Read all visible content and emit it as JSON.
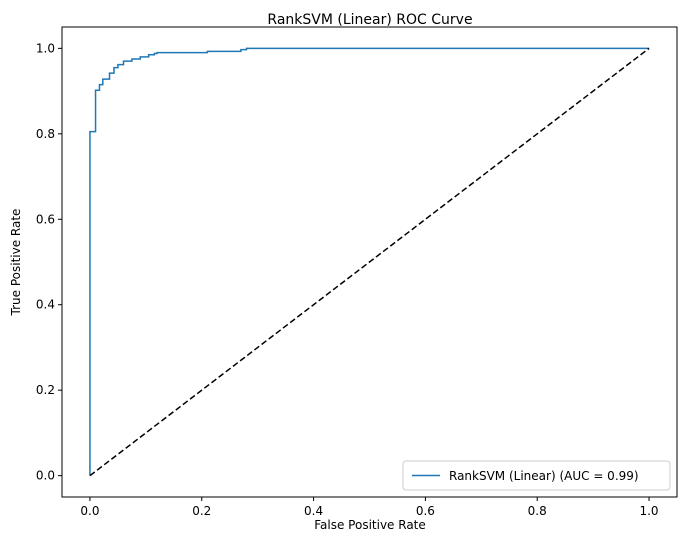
{
  "chart_data": {
    "type": "line",
    "title": "RankSVM (Linear) ROC Curve",
    "xlabel": "False Positive Rate",
    "ylabel": "True Positive Rate",
    "xlim": [
      -0.05,
      1.05
    ],
    "ylim": [
      -0.05,
      1.05
    ],
    "xticks": [
      "0.0",
      "0.2",
      "0.4",
      "0.6",
      "0.8",
      "1.0"
    ],
    "yticks": [
      "0.0",
      "0.2",
      "0.4",
      "0.6",
      "0.8",
      "1.0"
    ],
    "grid": false,
    "legend_position": "lower-right",
    "series": [
      {
        "name": "RankSVM (Linear) (AUC = 0.99)",
        "color": "#1f77b4",
        "style": "solid",
        "x": [
          0.0,
          0.0,
          0.01,
          0.01,
          0.017,
          0.017,
          0.023,
          0.023,
          0.035,
          0.035,
          0.043,
          0.043,
          0.05,
          0.05,
          0.06,
          0.06,
          0.075,
          0.075,
          0.09,
          0.09,
          0.105,
          0.105,
          0.115,
          0.115,
          0.12,
          0.12,
          0.21,
          0.21,
          0.27,
          0.27,
          0.28,
          0.28,
          1.0
        ],
        "y": [
          0.0,
          0.805,
          0.805,
          0.902,
          0.902,
          0.915,
          0.915,
          0.928,
          0.928,
          0.942,
          0.942,
          0.955,
          0.955,
          0.962,
          0.962,
          0.97,
          0.97,
          0.975,
          0.975,
          0.98,
          0.98,
          0.985,
          0.985,
          0.988,
          0.988,
          0.99,
          0.99,
          0.993,
          0.993,
          0.997,
          0.997,
          1.0,
          1.0
        ]
      },
      {
        "name": "",
        "color": "#000000",
        "style": "dashed",
        "x": [
          0.0,
          1.0
        ],
        "y": [
          0.0,
          1.0
        ]
      }
    ]
  }
}
